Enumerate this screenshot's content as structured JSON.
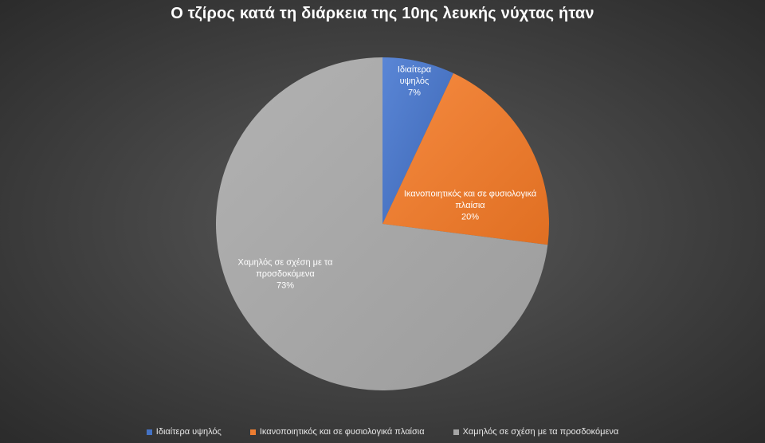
{
  "chart_data": {
    "type": "pie",
    "title": "Ο τζίρος κατά τη διάρκεια της 10ης λευκής νύχτας ήταν",
    "start_angle_deg": 0,
    "direction": "clockwise",
    "legend_position": "bottom",
    "slices": [
      {
        "label": "Ιδιαίτερα υψηλός",
        "value": 7,
        "percent_label": "7%",
        "color": "#4472c4",
        "label_lines": [
          "Ιδιαίτερα",
          "υψηλός",
          "7%"
        ]
      },
      {
        "label": "Ικανοποιητικός και σε φυσιολογικά πλαίσια",
        "value": 20,
        "percent_label": "20%",
        "color": "#ed7d31",
        "label_lines": [
          "Ικανοποιητικός και σε φυσιολογικά",
          "πλαίσια",
          "20%"
        ]
      },
      {
        "label": "Χαμηλός σε σχέση με τα προσδοκόμενα",
        "value": 73,
        "percent_label": "73%",
        "color": "#a5a5a5",
        "label_lines": [
          "Χαμηλός σε σχέση με τα",
          "προσδοκόμενα",
          "73%"
        ]
      }
    ]
  }
}
